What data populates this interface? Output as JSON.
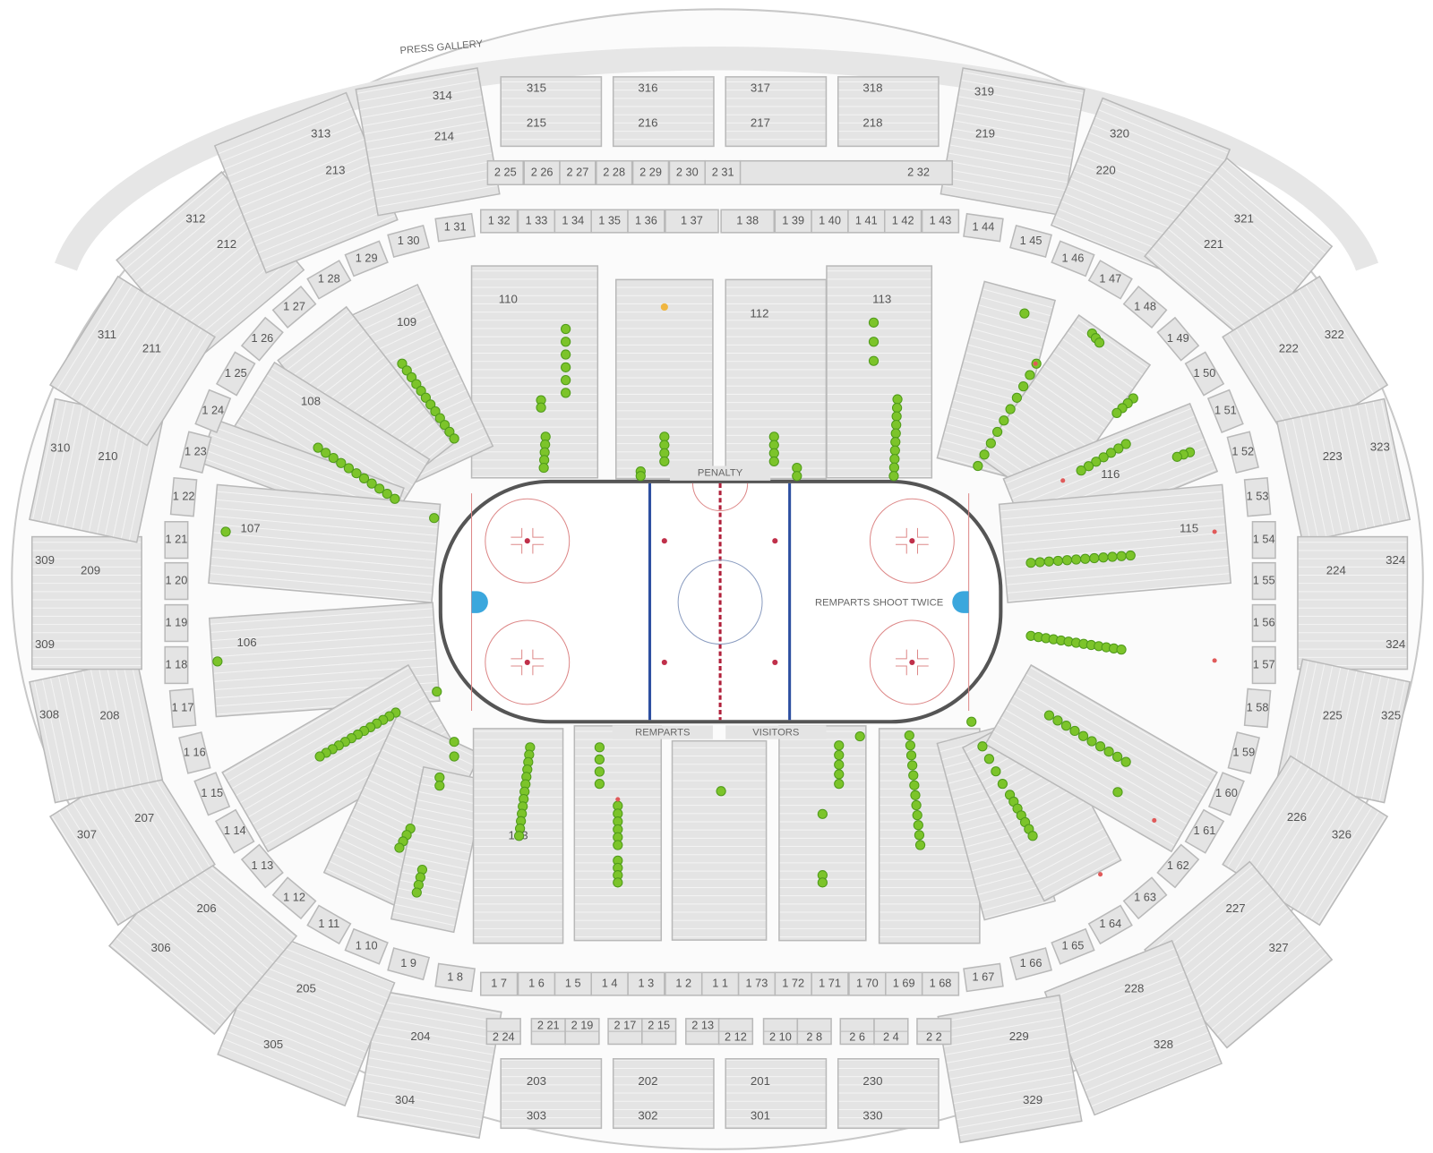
{
  "labels": {
    "press_gallery": "PRESS GALLERY",
    "penalty": "PENALTY",
    "home_bench": "REMPARTS",
    "visitor_bench": "VISITORS",
    "shoot_twice": "REMPARTS SHOOT TWICE"
  },
  "colors": {
    "available_seat": "#7cc42a",
    "available_seat_dark": "#4f9a1a",
    "featured_seat": "#f0b640",
    "unavailable_marker": "#e05a5a",
    "section_fill": "#e4e4e4",
    "blue_line": "#2d4fa0",
    "red_line": "#b0203a"
  },
  "lower_bowl": [
    "110",
    "",
    "112",
    "113",
    "109",
    "",
    "108",
    "",
    "107",
    "106",
    "",
    "",
    "",
    "103",
    "",
    "",
    "",
    "",
    "",
    "",
    "",
    "",
    "",
    "116",
    "115"
  ],
  "ring": [
    "1 31",
    "1 32",
    "1 33",
    "1 34",
    "1 35",
    "1 36",
    "1 37",
    "1 38",
    "1 39",
    "1 40",
    "1 41",
    "1 42",
    "1 43",
    "1 44",
    "1 45",
    "1 46",
    "1 47",
    "1 48",
    "1 49",
    "1 50",
    "1 51",
    "1 52",
    "1 53",
    "1 54",
    "1 55",
    "1 56",
    "1 57",
    "1 58",
    "1 59",
    "1 60",
    "1 61",
    "1 62",
    "1 63",
    "1 64",
    "1 65",
    "1 66",
    "1 67",
    "1 68",
    "1 69",
    "1 70",
    "1 71",
    "1 72",
    "1 73",
    "1 1",
    "1 2",
    "1 3",
    "1 4",
    "1 5",
    "1 6",
    "1 7",
    "1 8",
    "1 9",
    "1 10",
    "1 11",
    "1 12",
    "1 13",
    "1 14",
    "1 15",
    "1 16",
    "1 17",
    "1 18",
    "1 19",
    "1 20",
    "1 21",
    "1 22",
    "1 23",
    "1 24",
    "1 25",
    "1 26",
    "1 27",
    "1 28",
    "1 29",
    "1 30"
  ],
  "upper": [
    {
      "inner": "212",
      "outer": "312"
    },
    {
      "inner": "213",
      "outer": "313"
    },
    {
      "inner": "214",
      "outer": "314"
    },
    {
      "inner": "215",
      "outer": "315"
    },
    {
      "inner": "216",
      "outer": "316"
    },
    {
      "inner": "217",
      "outer": "317"
    },
    {
      "inner": "218",
      "outer": "318"
    },
    {
      "inner": "219",
      "outer": "319"
    },
    {
      "inner": "220",
      "outer": "320"
    },
    {
      "inner": "221",
      "outer": "321"
    },
    {
      "inner": "222",
      "outer": "322"
    },
    {
      "inner": "223",
      "outer": "323"
    },
    {
      "inner": "224",
      "outer": "324",
      "outer2": "324"
    },
    {
      "inner": "225",
      "outer": "325"
    },
    {
      "inner": "226",
      "outer": "326"
    },
    {
      "inner": "227",
      "outer": "327"
    },
    {
      "inner": "228",
      "outer": "328"
    },
    {
      "inner": "229",
      "outer": "329"
    },
    {
      "inner": "230",
      "outer": "330"
    },
    {
      "inner": "201",
      "outer": "301"
    },
    {
      "inner": "202",
      "outer": "302"
    },
    {
      "inner": "203",
      "outer": "303"
    },
    {
      "inner": "204",
      "outer": "304"
    },
    {
      "inner": "205",
      "outer": "305"
    },
    {
      "inner": "206",
      "outer": "306"
    },
    {
      "inner": "207",
      "outer": "307"
    },
    {
      "inner": "208",
      "outer": "308"
    },
    {
      "inner": "209",
      "outer": "309",
      "outer2": "309"
    },
    {
      "inner": "210",
      "outer": "310"
    },
    {
      "inner": "211",
      "outer": "311"
    }
  ],
  "suites_top": [
    "2 25",
    "2 26",
    "2 27",
    "2 28",
    "2 29",
    "2 30",
    "2 31",
    "2 32"
  ],
  "suites_bottom": [
    "2 24",
    "2 21",
    "2 19",
    "2 17",
    "2 15",
    "2 13",
    "2 12",
    "2 10",
    "2 8",
    "2 6",
    "2 4",
    "2 2"
  ]
}
